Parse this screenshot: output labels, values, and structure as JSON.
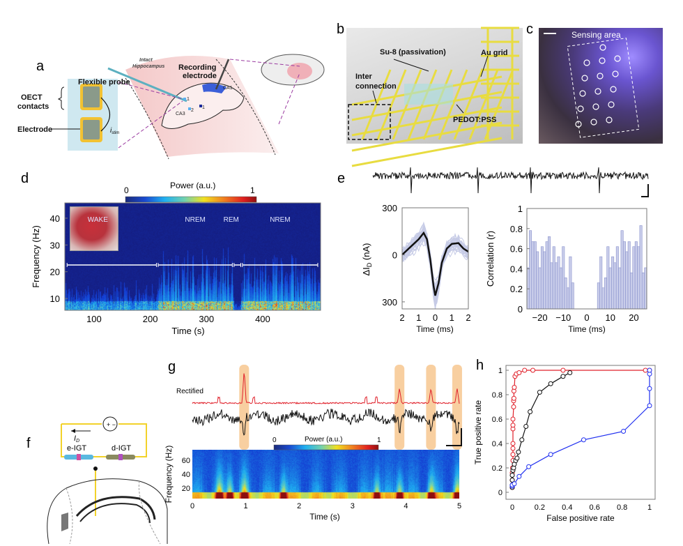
{
  "panel_labels": {
    "a": "a",
    "b": "b",
    "c": "c",
    "d": "d",
    "e": "e",
    "f": "f",
    "g": "g",
    "h": "h"
  },
  "panel_a": {
    "flexible_probe": "Flexible probe",
    "recording_electrode_1": "Recording",
    "recording_electrode_2": "electrode",
    "intact_1": "Intact",
    "intact_2": "Hippocampus",
    "oect_1": "OECT",
    "oect_2": "contacts",
    "electrode": "Electrode",
    "i_stim": "i",
    "i_stim_sub": "stim",
    "ca1": "CA1",
    "ca3": "CA3",
    "site_1": "1",
    "site_2": "2",
    "site_3": "1"
  },
  "panel_b": {
    "su8": "Su-8 (passivation)",
    "au_grid": "Au grid",
    "inter_1": "Inter",
    "inter_2": "connection",
    "pedot": "PEDOT:PSS"
  },
  "panel_c": {
    "sensing_area": "Sensing area"
  },
  "colors": {
    "red": "#e0202a",
    "black": "#111111",
    "blue": "#2030f0",
    "hist": "#b8bde0",
    "trace_fill": "#c6cbe6",
    "yellow": "#f2d22a",
    "highlight": "#f8cfa0"
  },
  "chart_data": [
    {
      "panel": "d",
      "type": "heatmap",
      "colorbar_label": "Power (a.u.)",
      "colorbar_ticks": [
        "0",
        "1"
      ],
      "ylabel": "Frequency (Hz)",
      "xlabel": "Time (s)",
      "yticks": [
        10,
        20,
        30,
        40
      ],
      "xticks": [
        100,
        200,
        300,
        400
      ],
      "xlim": [
        48,
        503
      ],
      "ylim": [
        5.6,
        45.7
      ],
      "states": [
        {
          "label": "WAKE",
          "start": 52,
          "end": 211
        },
        {
          "label": "NREM",
          "start": 214,
          "end": 346
        },
        {
          "label": "REM",
          "start": 349,
          "end": 361
        },
        {
          "label": "NREM",
          "start": 364,
          "end": 498
        }
      ]
    },
    {
      "panel": "e-waveform",
      "type": "line",
      "ylabel": "ΔI",
      "ylabel_sub": "D",
      "ylabel_unit": " (nA)",
      "xlabel": "Time (ms)",
      "ytick_labels": [
        "300",
        "0",
        "300"
      ],
      "yticks": [
        300,
        0,
        -300
      ],
      "xtick_labels": [
        "2",
        "1",
        "0",
        "1",
        "2"
      ],
      "xticks": [
        -2,
        -1,
        0,
        1,
        2
      ],
      "xlim": [
        -2,
        2
      ],
      "ylim": [
        -345,
        300
      ],
      "mean": {
        "x": [
          -2,
          -1.5,
          -1,
          -0.7,
          -0.5,
          -0.3,
          -0.1,
          0,
          0.2,
          0.4,
          0.7,
          1,
          1.4,
          1.7,
          2
        ],
        "y": [
          0,
          50,
          100,
          140,
          100,
          -30,
          -200,
          -260,
          -180,
          -50,
          40,
          70,
          75,
          40,
          20
        ]
      }
    },
    {
      "panel": "e-correlation",
      "type": "bar",
      "ylabel": "Correlation (r)",
      "xlabel": "Time (ms)",
      "yticks": [
        0,
        0.2,
        0.4,
        0.6,
        0.8,
        1
      ],
      "ytick_labels": [
        "0",
        "0.2",
        "0.4",
        "0.6",
        "0.8",
        "1"
      ],
      "xticks": [
        -20,
        -10,
        0,
        10,
        20
      ],
      "xtick_labels": [
        "−20",
        "−10",
        "0",
        "10",
        "20"
      ],
      "xlim": [
        -25.5,
        25.5
      ],
      "ylim": [
        0,
        1
      ],
      "x": [
        -25,
        -24,
        -23,
        -22,
        -21,
        -20,
        -19,
        -18,
        -17,
        -16,
        -15,
        -14,
        -13,
        -12,
        -11,
        -10,
        -9,
        -8,
        -7,
        -6,
        5,
        6,
        7,
        8,
        9,
        10,
        11,
        12,
        13,
        14,
        15,
        16,
        17,
        18,
        19,
        20,
        21,
        22,
        23,
        24,
        25
      ],
      "values": [
        0.41,
        0.78,
        0.67,
        0.67,
        0.57,
        0.41,
        0.62,
        0.57,
        0.67,
        0.72,
        0.46,
        0.62,
        0.46,
        0.52,
        0.41,
        0.62,
        0.31,
        0.21,
        0.52,
        0.26,
        0.26,
        0.52,
        0.21,
        0.31,
        0.62,
        0.41,
        0.52,
        0.46,
        0.62,
        0.41,
        0.78,
        0.67,
        0.57,
        0.67,
        0.36,
        0.62,
        0.67,
        0.62,
        0.83,
        0.36,
        0.41
      ]
    },
    {
      "panel": "f",
      "type": "diagram",
      "current_label": "I",
      "current_sub": "D",
      "e_igt": "e-IGT",
      "d_igt": "d-IGT"
    },
    {
      "panel": "g",
      "type": "heatmap",
      "trace_label": "Rectified",
      "colorbar_label": "Power (a.u.)",
      "colorbar_ticks": [
        "0",
        "1"
      ],
      "ylabel": "Frequency (Hz)",
      "xlabel": "Time (s)",
      "yticks": [
        20,
        40,
        60
      ],
      "xticks": [
        0,
        1,
        2,
        3,
        4,
        5
      ],
      "xlim": [
        0,
        5
      ],
      "ylim": [
        5,
        75
      ],
      "events_s": [
        0.97,
        3.88,
        4.47,
        4.96
      ]
    },
    {
      "panel": "h",
      "type": "line",
      "xlabel": "False positive rate",
      "ylabel": "True positive rate",
      "xticks": [
        0,
        0.2,
        0.4,
        0.6,
        0.8,
        1
      ],
      "xtick_labels": [
        "0",
        "0.2",
        "0.4",
        "0.6",
        "0.8",
        "1"
      ],
      "yticks": [
        0,
        0.2,
        0.4,
        0.6,
        0.8,
        1
      ],
      "ytick_labels": [
        "0",
        "0.2",
        "0.4",
        "0.6",
        "0.8",
        "1"
      ],
      "xlim": [
        -0.05,
        1.05
      ],
      "ylim": [
        -0.04,
        1.05
      ],
      "series": [
        {
          "color": "#e0202a",
          "x": [
            0,
            0,
            0,
            0.002,
            0.005,
            0.005,
            0.005,
            0.005,
            0.005,
            0.005,
            0.005,
            0.01,
            0.01,
            0.012,
            0.012,
            0.015,
            0.02,
            0.03,
            0.05,
            0.09,
            0.15,
            0.37,
            0.97,
            1
          ],
          "y": [
            0.04,
            0.1,
            0.16,
            0.2,
            0.26,
            0.31,
            0.36,
            0.4,
            0.52,
            0.55,
            0.6,
            0.7,
            0.75,
            0.77,
            0.83,
            0.86,
            0.95,
            0.97,
            0.98,
            1,
            1,
            1,
            1,
            1
          ]
        },
        {
          "color": "#111111",
          "x": [
            0,
            0,
            0,
            0,
            0.005,
            0.01,
            0.015,
            0.025,
            0.035,
            0.045,
            0.07,
            0.1,
            0.13,
            0.2,
            0.28,
            0.37,
            0.42
          ],
          "y": [
            0.04,
            0.06,
            0.1,
            0.14,
            0.18,
            0.2,
            0.23,
            0.26,
            0.28,
            0.33,
            0.43,
            0.54,
            0.66,
            0.82,
            0.89,
            0.95,
            0.98
          ]
        },
        {
          "color": "#2030f0",
          "x": [
            0,
            0,
            0.015,
            0.05,
            0.12,
            0.28,
            0.52,
            0.81,
            1,
            1,
            1,
            1
          ],
          "y": [
            0.05,
            0.06,
            0.07,
            0.13,
            0.21,
            0.31,
            0.43,
            0.5,
            0.71,
            0.85,
            0.97,
            1
          ]
        }
      ]
    }
  ]
}
